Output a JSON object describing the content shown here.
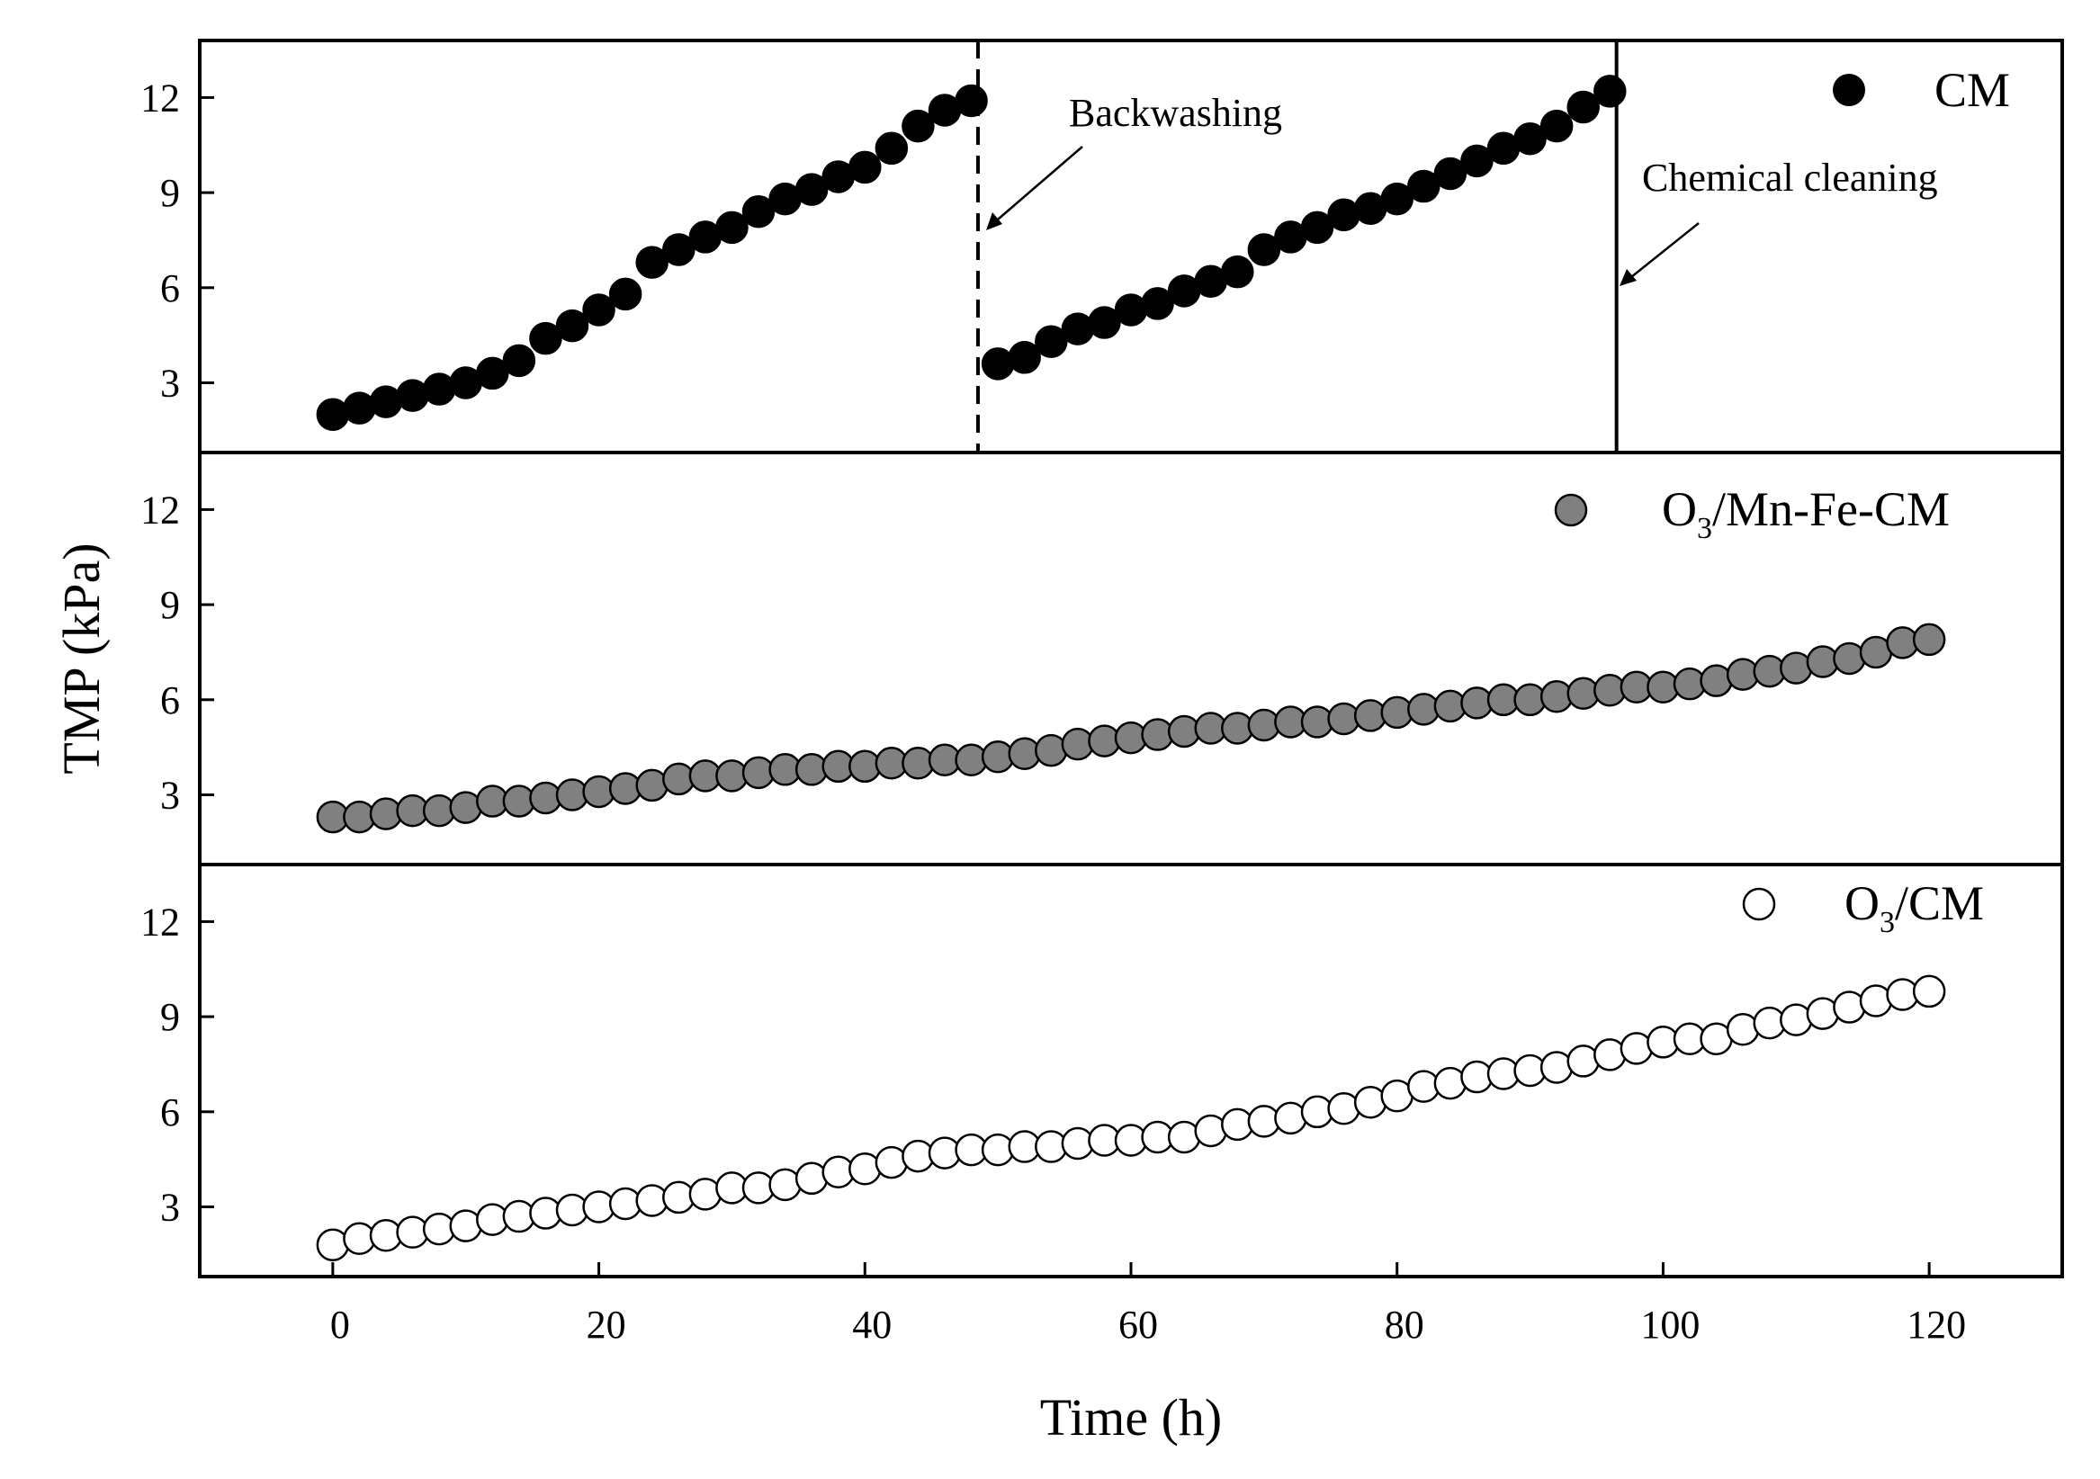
{
  "chart_data": {
    "type": "scatter",
    "xlabel": "Time (h)",
    "ylabel": "TMP (kPa)",
    "xlim": [
      -10,
      130
    ],
    "ylim": [
      0.8,
      13.8
    ],
    "xticks": [
      0,
      20,
      40,
      60,
      80,
      100,
      120
    ],
    "yticks": [
      3,
      6,
      9,
      12
    ],
    "grid": false,
    "panels": [
      {
        "series": {
          "name": "CM",
          "marker": "filled-black",
          "fill": "#000000",
          "x": [
            0,
            2,
            4,
            6,
            8,
            10,
            12,
            14,
            16,
            18,
            20,
            22,
            24,
            26,
            28,
            30,
            32,
            34,
            36,
            38,
            40,
            42,
            44,
            46,
            48,
            50,
            52,
            54,
            56,
            58,
            60,
            62,
            64,
            66,
            68,
            70,
            72,
            74,
            76,
            78,
            80,
            82,
            84,
            86,
            88,
            90,
            92,
            94,
            96
          ],
          "y": [
            2.0,
            2.2,
            2.4,
            2.6,
            2.8,
            3.0,
            3.3,
            3.7,
            4.4,
            4.8,
            5.3,
            5.8,
            6.8,
            7.2,
            7.6,
            7.9,
            8.4,
            8.8,
            9.1,
            9.5,
            9.8,
            10.4,
            11.1,
            11.6,
            11.9,
            3.6,
            3.8,
            4.3,
            4.7,
            4.9,
            5.3,
            5.5,
            5.9,
            6.2,
            6.5,
            7.2,
            7.6,
            7.9,
            8.3,
            8.5,
            8.8,
            9.2,
            9.6,
            10.0,
            10.4,
            10.7,
            11.1,
            11.7,
            12.2
          ]
        },
        "annotations": [
          {
            "text": "Backwashing",
            "x": 48.5,
            "line": "dashed"
          },
          {
            "text": "Chemical cleaning",
            "x": 96.5,
            "line": "solid"
          }
        ]
      },
      {
        "series": {
          "name": "O3/Mn-Fe-CM",
          "marker": "filled-gray",
          "fill": "#808080",
          "x": [
            0,
            2,
            4,
            6,
            8,
            10,
            12,
            14,
            16,
            18,
            20,
            22,
            24,
            26,
            28,
            30,
            32,
            34,
            36,
            38,
            40,
            42,
            44,
            46,
            48,
            50,
            52,
            54,
            56,
            58,
            60,
            62,
            64,
            66,
            68,
            70,
            72,
            74,
            76,
            78,
            80,
            82,
            84,
            86,
            88,
            90,
            92,
            94,
            96,
            98,
            100,
            102,
            104,
            106,
            108,
            110,
            112,
            114,
            116,
            118,
            120
          ],
          "y": [
            2.3,
            2.3,
            2.4,
            2.5,
            2.5,
            2.6,
            2.8,
            2.8,
            2.9,
            3.0,
            3.1,
            3.2,
            3.3,
            3.5,
            3.6,
            3.6,
            3.7,
            3.8,
            3.8,
            3.9,
            3.9,
            4.0,
            4.0,
            4.1,
            4.1,
            4.2,
            4.3,
            4.4,
            4.6,
            4.7,
            4.8,
            4.9,
            5.0,
            5.1,
            5.1,
            5.2,
            5.3,
            5.3,
            5.4,
            5.5,
            5.6,
            5.7,
            5.8,
            5.9,
            6.0,
            6.0,
            6.1,
            6.2,
            6.3,
            6.4,
            6.4,
            6.5,
            6.6,
            6.8,
            6.9,
            7.0,
            7.2,
            7.3,
            7.5,
            7.8,
            7.9
          ]
        }
      },
      {
        "series": {
          "name": "O3/CM",
          "marker": "open-circle",
          "fill": "#ffffff",
          "x": [
            0,
            2,
            4,
            6,
            8,
            10,
            12,
            14,
            16,
            18,
            20,
            22,
            24,
            26,
            28,
            30,
            32,
            34,
            36,
            38,
            40,
            42,
            44,
            46,
            48,
            50,
            52,
            54,
            56,
            58,
            60,
            62,
            64,
            66,
            68,
            70,
            72,
            74,
            76,
            78,
            80,
            82,
            84,
            86,
            88,
            90,
            92,
            94,
            96,
            98,
            100,
            102,
            104,
            106,
            108,
            110,
            112,
            114,
            116,
            118,
            120
          ],
          "y": [
            1.8,
            2.0,
            2.1,
            2.2,
            2.3,
            2.4,
            2.6,
            2.7,
            2.8,
            2.9,
            3.0,
            3.1,
            3.2,
            3.3,
            3.4,
            3.6,
            3.6,
            3.7,
            3.9,
            4.1,
            4.2,
            4.4,
            4.6,
            4.7,
            4.8,
            4.8,
            4.9,
            4.9,
            5.0,
            5.1,
            5.1,
            5.2,
            5.2,
            5.4,
            5.6,
            5.7,
            5.8,
            6.0,
            6.1,
            6.3,
            6.5,
            6.8,
            6.9,
            7.1,
            7.2,
            7.3,
            7.4,
            7.6,
            7.8,
            8.0,
            8.2,
            8.3,
            8.3,
            8.6,
            8.8,
            8.9,
            9.1,
            9.3,
            9.5,
            9.7,
            9.8
          ]
        }
      }
    ]
  },
  "legend": {
    "cm": "CM",
    "mnfe": {
      "prefix": "O",
      "sub": "3",
      "suffix": "/Mn-Fe-CM"
    },
    "o3cm": {
      "prefix": "O",
      "sub": "3",
      "suffix": "/CM"
    }
  }
}
